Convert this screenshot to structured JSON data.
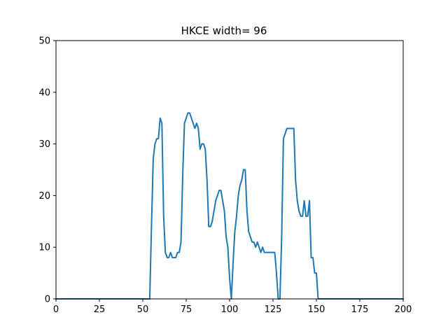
{
  "chart_data": {
    "type": "line",
    "title": "HKCE width= 96",
    "xlabel": "",
    "ylabel": "",
    "xlim": [
      0,
      200
    ],
    "ylim": [
      0,
      50
    ],
    "xticks": [
      0,
      25,
      50,
      75,
      100,
      125,
      150,
      175,
      200
    ],
    "yticks": [
      0,
      10,
      20,
      30,
      40,
      50
    ],
    "grid": false,
    "series_color": "#1f77b4",
    "series": [
      {
        "values": [
          [
            0,
            0
          ],
          [
            54,
            0
          ],
          [
            55,
            14
          ],
          [
            56,
            27
          ],
          [
            57,
            30
          ],
          [
            58,
            31
          ],
          [
            59,
            31
          ],
          [
            60,
            35
          ],
          [
            61,
            34
          ],
          [
            62,
            16
          ],
          [
            63,
            9
          ],
          [
            64,
            8
          ],
          [
            65,
            8
          ],
          [
            66,
            9
          ],
          [
            67,
            8
          ],
          [
            68,
            8
          ],
          [
            69,
            8
          ],
          [
            70,
            9
          ],
          [
            71,
            9
          ],
          [
            72,
            11
          ],
          [
            73,
            24
          ],
          [
            74,
            34
          ],
          [
            75,
            35
          ],
          [
            76,
            36
          ],
          [
            77,
            36
          ],
          [
            78,
            35
          ],
          [
            79,
            34
          ],
          [
            80,
            33
          ],
          [
            81,
            34
          ],
          [
            82,
            33
          ],
          [
            83,
            29
          ],
          [
            84,
            30
          ],
          [
            85,
            30
          ],
          [
            86,
            29
          ],
          [
            87,
            23
          ],
          [
            88,
            14
          ],
          [
            89,
            14
          ],
          [
            90,
            15
          ],
          [
            91,
            17
          ],
          [
            92,
            19
          ],
          [
            93,
            20
          ],
          [
            94,
            21
          ],
          [
            95,
            21
          ],
          [
            96,
            19
          ],
          [
            97,
            17
          ],
          [
            98,
            12
          ],
          [
            99,
            10
          ],
          [
            100,
            4
          ],
          [
            101,
            0
          ],
          [
            102,
            7
          ],
          [
            103,
            13
          ],
          [
            104,
            16
          ],
          [
            105,
            20
          ],
          [
            106,
            22
          ],
          [
            107,
            23
          ],
          [
            108,
            25
          ],
          [
            109,
            25
          ],
          [
            110,
            17
          ],
          [
            111,
            13
          ],
          [
            112,
            12
          ],
          [
            113,
            11
          ],
          [
            114,
            11
          ],
          [
            115,
            10
          ],
          [
            116,
            11
          ],
          [
            117,
            10
          ],
          [
            118,
            9
          ],
          [
            119,
            10
          ],
          [
            120,
            9
          ],
          [
            121,
            9
          ],
          [
            122,
            9
          ],
          [
            123,
            9
          ],
          [
            124,
            9
          ],
          [
            125,
            9
          ],
          [
            126,
            9
          ],
          [
            127,
            5
          ],
          [
            128,
            0
          ],
          [
            129,
            0
          ],
          [
            130,
            12
          ],
          [
            131,
            31
          ],
          [
            132,
            32
          ],
          [
            133,
            33
          ],
          [
            134,
            33
          ],
          [
            135,
            33
          ],
          [
            136,
            33
          ],
          [
            137,
            33
          ],
          [
            138,
            23
          ],
          [
            139,
            19
          ],
          [
            140,
            17
          ],
          [
            141,
            16
          ],
          [
            142,
            16
          ],
          [
            143,
            19
          ],
          [
            144,
            16
          ],
          [
            145,
            16
          ],
          [
            146,
            19
          ],
          [
            147,
            8
          ],
          [
            148,
            8
          ],
          [
            149,
            5
          ],
          [
            150,
            5
          ],
          [
            151,
            0
          ],
          [
            200,
            0
          ]
        ]
      }
    ]
  }
}
